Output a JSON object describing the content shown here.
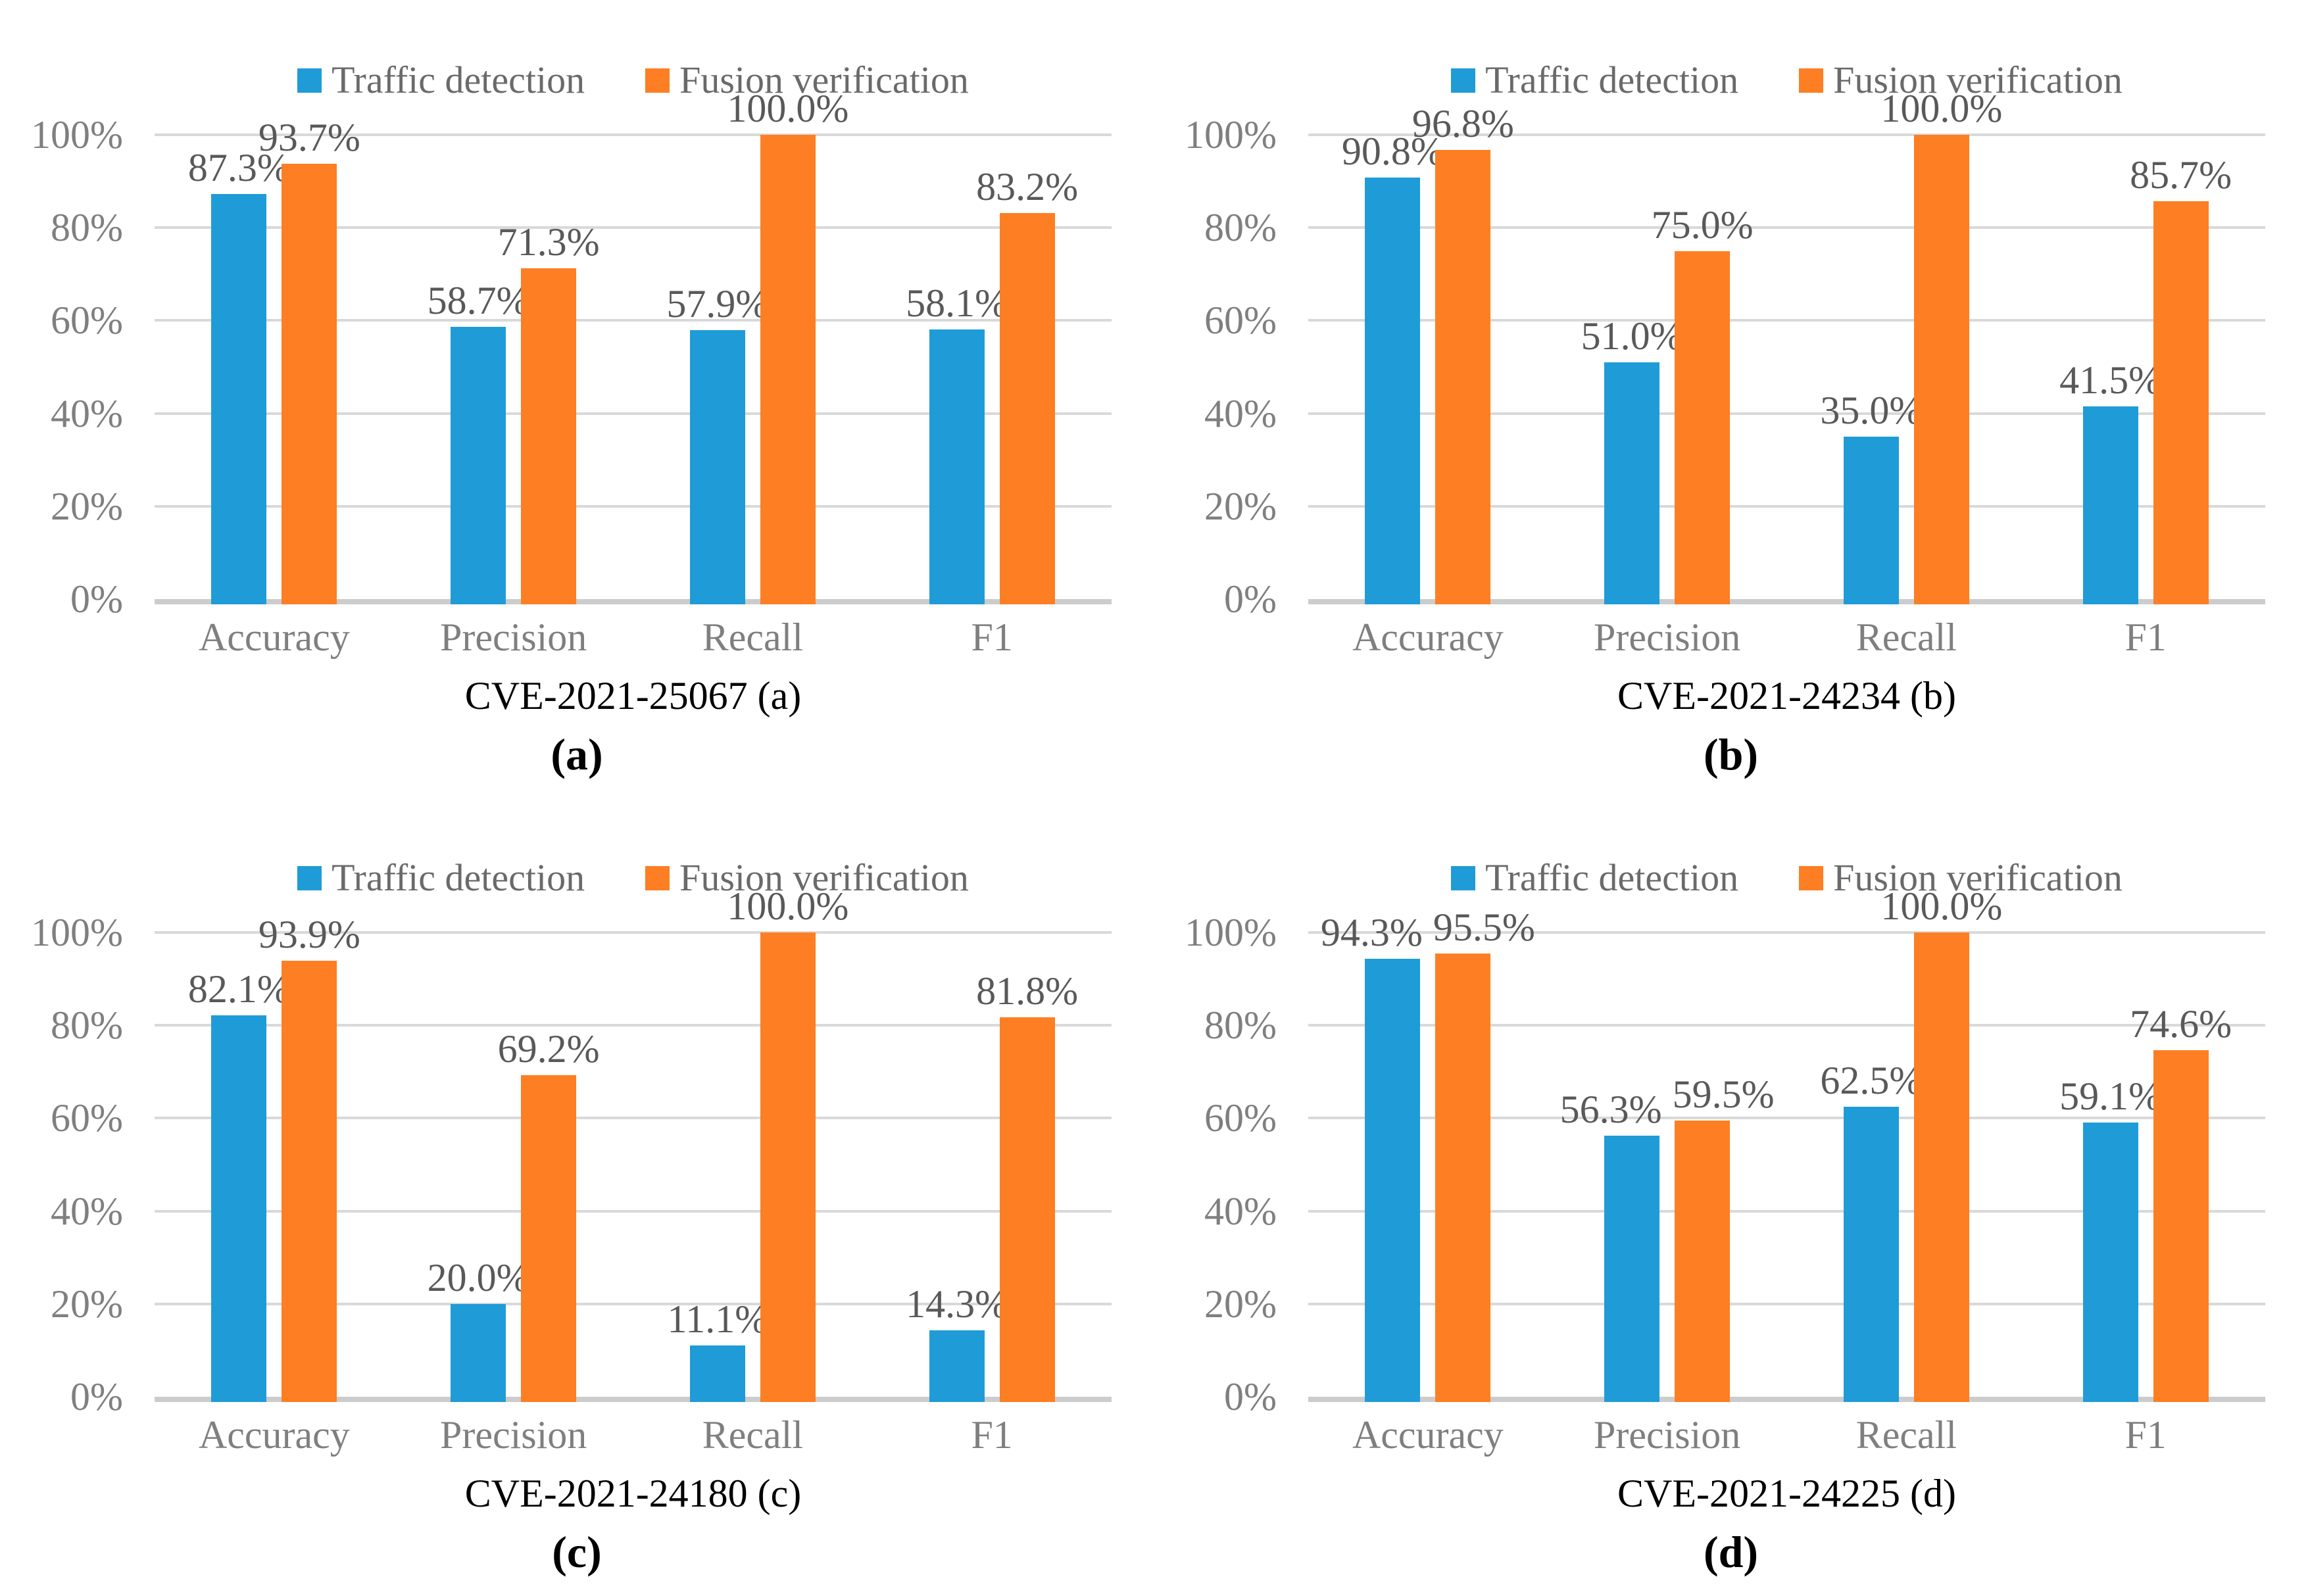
{
  "figure": {
    "legend": [
      {
        "label": "Traffic detection",
        "color": "#1F9CD7"
      },
      {
        "label": "Fusion verification",
        "color": "#FD7E23"
      }
    ],
    "y_axis_ticks": [
      "0%",
      "20%",
      "40%",
      "60%",
      "80%",
      "100%"
    ],
    "colors": {
      "gridline": "#D9D9D9",
      "axis_line": "#CCCCCC",
      "tick_label": "#7F7F7F",
      "data_label": "#595959",
      "legend_text": "#6A6A6A",
      "caption_text": "#000000"
    }
  },
  "chart_data": [
    {
      "type": "bar",
      "caption": "CVE-2021-25067 (a)",
      "panel_letter": "(a)",
      "categories": [
        "Accuracy",
        "Precision",
        "Recall",
        "F1"
      ],
      "series": [
        {
          "name": "Traffic detection",
          "values": [
            87.3,
            58.7,
            57.9,
            58.1
          ],
          "labels": [
            "87.3%",
            "58.7%",
            "57.9%",
            "58.1%"
          ]
        },
        {
          "name": "Fusion verification",
          "values": [
            93.7,
            71.3,
            100.0,
            83.2
          ],
          "labels": [
            "93.7%",
            "71.3%",
            "100.0%",
            "83.2%"
          ]
        }
      ],
      "ylim": [
        0,
        100
      ],
      "grid": true,
      "legend_position": "top"
    },
    {
      "type": "bar",
      "caption": "CVE-2021-24234 (b)",
      "panel_letter": "(b)",
      "categories": [
        "Accuracy",
        "Precision",
        "Recall",
        "F1"
      ],
      "series": [
        {
          "name": "Traffic detection",
          "values": [
            90.8,
            51.0,
            35.0,
            41.5
          ],
          "labels": [
            "90.8%",
            "51.0%",
            "35.0%",
            "41.5%"
          ]
        },
        {
          "name": "Fusion verification",
          "values": [
            96.8,
            75.0,
            100.0,
            85.7
          ],
          "labels": [
            "96.8%",
            "75.0%",
            "100.0%",
            "85.7%"
          ]
        }
      ],
      "ylim": [
        0,
        100
      ],
      "grid": true,
      "legend_position": "top"
    },
    {
      "type": "bar",
      "caption": "CVE-2021-24180 (c)",
      "panel_letter": "(c)",
      "categories": [
        "Accuracy",
        "Precision",
        "Recall",
        "F1"
      ],
      "series": [
        {
          "name": "Traffic detection",
          "values": [
            82.1,
            20.0,
            11.1,
            14.3
          ],
          "labels": [
            "82.1%",
            "20.0%",
            "11.1%",
            "14.3%"
          ]
        },
        {
          "name": "Fusion verification",
          "values": [
            93.9,
            69.2,
            100.0,
            81.8
          ],
          "labels": [
            "93.9%",
            "69.2%",
            "100.0%",
            "81.8%"
          ]
        }
      ],
      "ylim": [
        0,
        100
      ],
      "grid": true,
      "legend_position": "top"
    },
    {
      "type": "bar",
      "caption": "CVE-2021-24225 (d)",
      "panel_letter": "(d)",
      "categories": [
        "Accuracy",
        "Precision",
        "Recall",
        "F1"
      ],
      "series": [
        {
          "name": "Traffic detection",
          "values": [
            94.3,
            56.3,
            62.5,
            59.1
          ],
          "labels": [
            "94.3%",
            "56.3%",
            "62.5%",
            "59.1%"
          ]
        },
        {
          "name": "Fusion verification",
          "values": [
            95.5,
            59.5,
            100.0,
            74.6
          ],
          "labels": [
            "95.5%",
            "59.5%",
            "100.0%",
            "74.6%"
          ]
        }
      ],
      "ylim": [
        0,
        100
      ],
      "grid": true,
      "legend_position": "top"
    }
  ]
}
